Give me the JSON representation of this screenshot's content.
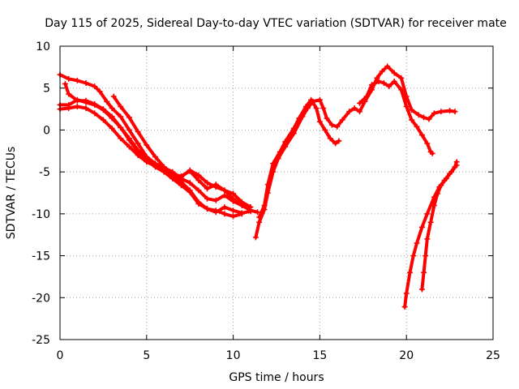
{
  "chart_data": {
    "type": "scatter",
    "title": "Day 115 of 2025, Sidereal Day-to-day VTEC variation (SDTVAR) for receiver mate",
    "xlabel": "GPS time / hours",
    "ylabel": "SDTVAR / TECUs",
    "xlim": [
      0,
      25
    ],
    "ylim": [
      -25,
      10
    ],
    "x_ticks": [
      0,
      5,
      10,
      15,
      20,
      25
    ],
    "y_ticks": [
      10,
      5,
      0,
      -5,
      -10,
      -15,
      -20,
      -25
    ],
    "x_tick_labels": [
      "0",
      "5",
      "10",
      "15",
      "20",
      "25"
    ],
    "y_tick_labels": [
      "10",
      "5",
      "0",
      "-5",
      "-10",
      "-15",
      "-20",
      "-25"
    ],
    "grid": true,
    "marker": "+",
    "color": "#ff0000",
    "series": [
      {
        "name": "track-1",
        "points": [
          [
            0.0,
            6.6
          ],
          [
            0.5,
            6.1
          ],
          [
            1.0,
            5.9
          ],
          [
            1.5,
            5.6
          ],
          [
            2.0,
            5.2
          ],
          [
            2.3,
            4.6
          ],
          [
            2.7,
            3.4
          ],
          [
            3.0,
            2.6
          ],
          [
            3.5,
            1.6
          ],
          [
            4.0,
            0.0
          ],
          [
            4.5,
            -1.6
          ],
          [
            5.0,
            -3.2
          ],
          [
            5.5,
            -4.0
          ],
          [
            6.0,
            -4.5
          ],
          [
            6.5,
            -5.0
          ],
          [
            7.0,
            -5.8
          ],
          [
            7.5,
            -6.3
          ],
          [
            8.0,
            -7.2
          ],
          [
            8.5,
            -8.2
          ],
          [
            9.0,
            -8.4
          ],
          [
            9.5,
            -7.8
          ],
          [
            10.0,
            -8.5
          ],
          [
            10.5,
            -9.0
          ],
          [
            11.0,
            -9.6
          ],
          [
            11.4,
            -9.8
          ]
        ]
      },
      {
        "name": "track-2",
        "points": [
          [
            0.0,
            2.5
          ],
          [
            0.5,
            2.6
          ],
          [
            1.0,
            2.8
          ],
          [
            1.5,
            2.6
          ],
          [
            2.0,
            2.0
          ],
          [
            2.5,
            1.2
          ],
          [
            3.0,
            0.2
          ],
          [
            3.5,
            -1.0
          ],
          [
            4.0,
            -2.0
          ],
          [
            4.5,
            -3.0
          ],
          [
            5.0,
            -3.8
          ],
          [
            5.5,
            -4.3
          ],
          [
            6.0,
            -4.8
          ],
          [
            6.5,
            -5.4
          ],
          [
            7.0,
            -6.2
          ],
          [
            7.5,
            -7.2
          ],
          [
            8.0,
            -8.6
          ],
          [
            8.5,
            -9.4
          ],
          [
            9.0,
            -9.8
          ],
          [
            9.5,
            -9.2
          ],
          [
            10.0,
            -9.6
          ],
          [
            10.5,
            -9.9
          ],
          [
            11.0,
            -9.7
          ]
        ]
      },
      {
        "name": "track-3",
        "points": [
          [
            0.3,
            5.5
          ],
          [
            0.5,
            4.3
          ],
          [
            1.0,
            3.5
          ],
          [
            1.5,
            3.5
          ],
          [
            2.0,
            3.1
          ],
          [
            2.5,
            2.5
          ],
          [
            3.0,
            1.6
          ],
          [
            3.5,
            0.3
          ],
          [
            4.0,
            -1.0
          ],
          [
            4.5,
            -2.4
          ],
          [
            5.0,
            -3.4
          ],
          [
            5.5,
            -4.0
          ],
          [
            6.0,
            -4.6
          ],
          [
            6.5,
            -5.3
          ],
          [
            7.0,
            -5.5
          ],
          [
            7.5,
            -4.9
          ],
          [
            8.0,
            -6.0
          ],
          [
            8.5,
            -7.0
          ],
          [
            9.0,
            -6.5
          ],
          [
            9.5,
            -7.2
          ],
          [
            10.0,
            -8.2
          ],
          [
            10.5,
            -9.0
          ],
          [
            11.0,
            -9.2
          ]
        ]
      },
      {
        "name": "track-4",
        "points": [
          [
            0.0,
            3.0
          ],
          [
            0.5,
            3.0
          ],
          [
            1.0,
            3.6
          ],
          [
            1.5,
            3.3
          ],
          [
            2.0,
            3.0
          ],
          [
            2.5,
            2.4
          ],
          [
            3.0,
            1.4
          ],
          [
            3.5,
            0.3
          ],
          [
            4.0,
            -1.2
          ],
          [
            4.5,
            -2.6
          ],
          [
            5.0,
            -3.6
          ],
          [
            5.5,
            -4.4
          ],
          [
            6.0,
            -5.0
          ],
          [
            6.5,
            -5.8
          ],
          [
            7.0,
            -6.6
          ],
          [
            7.5,
            -7.4
          ],
          [
            8.0,
            -8.8
          ],
          [
            8.5,
            -9.4
          ],
          [
            9.0,
            -9.6
          ],
          [
            9.5,
            -10.0
          ],
          [
            10.0,
            -10.3
          ],
          [
            10.5,
            -10.0
          ]
        ]
      },
      {
        "name": "track-5",
        "points": [
          [
            3.1,
            4.0
          ],
          [
            3.5,
            2.8
          ],
          [
            4.0,
            1.5
          ],
          [
            4.5,
            -0.2
          ],
          [
            5.0,
            -1.8
          ],
          [
            5.5,
            -3.2
          ],
          [
            6.0,
            -4.4
          ],
          [
            6.5,
            -5.2
          ],
          [
            7.0,
            -5.6
          ],
          [
            7.5,
            -4.8
          ],
          [
            8.0,
            -5.4
          ],
          [
            8.5,
            -6.3
          ],
          [
            9.0,
            -6.8
          ],
          [
            9.5,
            -7.2
          ],
          [
            10.0,
            -7.6
          ],
          [
            10.5,
            -8.6
          ],
          [
            11.0,
            -9.2
          ]
        ]
      },
      {
        "name": "track-6",
        "points": [
          [
            11.3,
            -12.8
          ],
          [
            11.5,
            -11.0
          ],
          [
            11.8,
            -9.5
          ],
          [
            12.0,
            -7.5
          ],
          [
            12.3,
            -5.0
          ],
          [
            12.6,
            -3.4
          ],
          [
            13.0,
            -2.0
          ],
          [
            13.5,
            -0.4
          ],
          [
            14.0,
            1.6
          ],
          [
            14.3,
            2.6
          ],
          [
            14.6,
            3.4
          ],
          [
            15.0,
            3.6
          ],
          [
            15.2,
            2.6
          ],
          [
            15.4,
            1.4
          ],
          [
            15.7,
            0.6
          ],
          [
            16.0,
            0.4
          ],
          [
            16.3,
            1.2
          ],
          [
            16.7,
            2.2
          ],
          [
            17.0,
            2.6
          ],
          [
            17.3,
            2.2
          ],
          [
            17.6,
            3.4
          ],
          [
            18.0,
            4.8
          ],
          [
            18.3,
            6.2
          ],
          [
            18.6,
            7.0
          ],
          [
            18.9,
            7.6
          ],
          [
            19.3,
            6.8
          ],
          [
            19.7,
            6.2
          ],
          [
            20.0,
            4.0
          ],
          [
            20.3,
            2.4
          ],
          [
            20.7,
            1.8
          ],
          [
            21.0,
            1.5
          ],
          [
            21.3,
            1.3
          ],
          [
            21.6,
            2.0
          ],
          [
            22.0,
            2.2
          ],
          [
            22.5,
            2.3
          ],
          [
            22.8,
            2.2
          ]
        ]
      },
      {
        "name": "track-7",
        "points": [
          [
            11.5,
            -10.4
          ],
          [
            11.8,
            -9.0
          ],
          [
            12.0,
            -6.5
          ],
          [
            12.3,
            -4.0
          ],
          [
            12.7,
            -2.6
          ],
          [
            13.0,
            -1.4
          ],
          [
            13.5,
            0.2
          ],
          [
            13.8,
            1.4
          ],
          [
            14.2,
            2.8
          ],
          [
            14.5,
            3.6
          ],
          [
            14.8,
            2.6
          ],
          [
            15.0,
            1.0
          ],
          [
            15.3,
            0.0
          ],
          [
            15.6,
            -1.0
          ],
          [
            15.9,
            -1.6
          ],
          [
            16.1,
            -1.3
          ]
        ]
      },
      {
        "name": "track-8",
        "points": [
          [
            17.3,
            3.2
          ],
          [
            17.7,
            4.0
          ],
          [
            18.0,
            5.4
          ],
          [
            18.4,
            5.8
          ],
          [
            18.7,
            5.6
          ],
          [
            19.0,
            5.2
          ],
          [
            19.3,
            5.8
          ],
          [
            19.7,
            4.8
          ],
          [
            20.0,
            2.8
          ],
          [
            20.3,
            1.2
          ],
          [
            20.6,
            0.4
          ],
          [
            20.9,
            -0.6
          ],
          [
            21.2,
            -1.6
          ],
          [
            21.4,
            -2.6
          ],
          [
            21.5,
            -2.8
          ]
        ]
      },
      {
        "name": "track-9",
        "points": [
          [
            19.9,
            -21.1
          ],
          [
            20.0,
            -19.5
          ],
          [
            20.2,
            -17.0
          ],
          [
            20.4,
            -15.0
          ],
          [
            20.6,
            -13.5
          ],
          [
            20.9,
            -11.6
          ],
          [
            21.2,
            -10.0
          ],
          [
            21.6,
            -8.0
          ],
          [
            21.9,
            -6.8
          ],
          [
            22.2,
            -6.0
          ],
          [
            22.5,
            -5.2
          ],
          [
            22.8,
            -4.4
          ],
          [
            22.9,
            -3.8
          ]
        ]
      },
      {
        "name": "track-10",
        "points": [
          [
            20.9,
            -19.0
          ],
          [
            21.0,
            -17.0
          ],
          [
            21.1,
            -15.0
          ],
          [
            21.2,
            -13.0
          ],
          [
            21.4,
            -11.0
          ],
          [
            21.6,
            -9.0
          ],
          [
            21.8,
            -7.6
          ],
          [
            22.0,
            -6.6
          ],
          [
            22.3,
            -5.8
          ],
          [
            22.6,
            -5.0
          ],
          [
            22.9,
            -4.2
          ]
        ]
      }
    ]
  }
}
